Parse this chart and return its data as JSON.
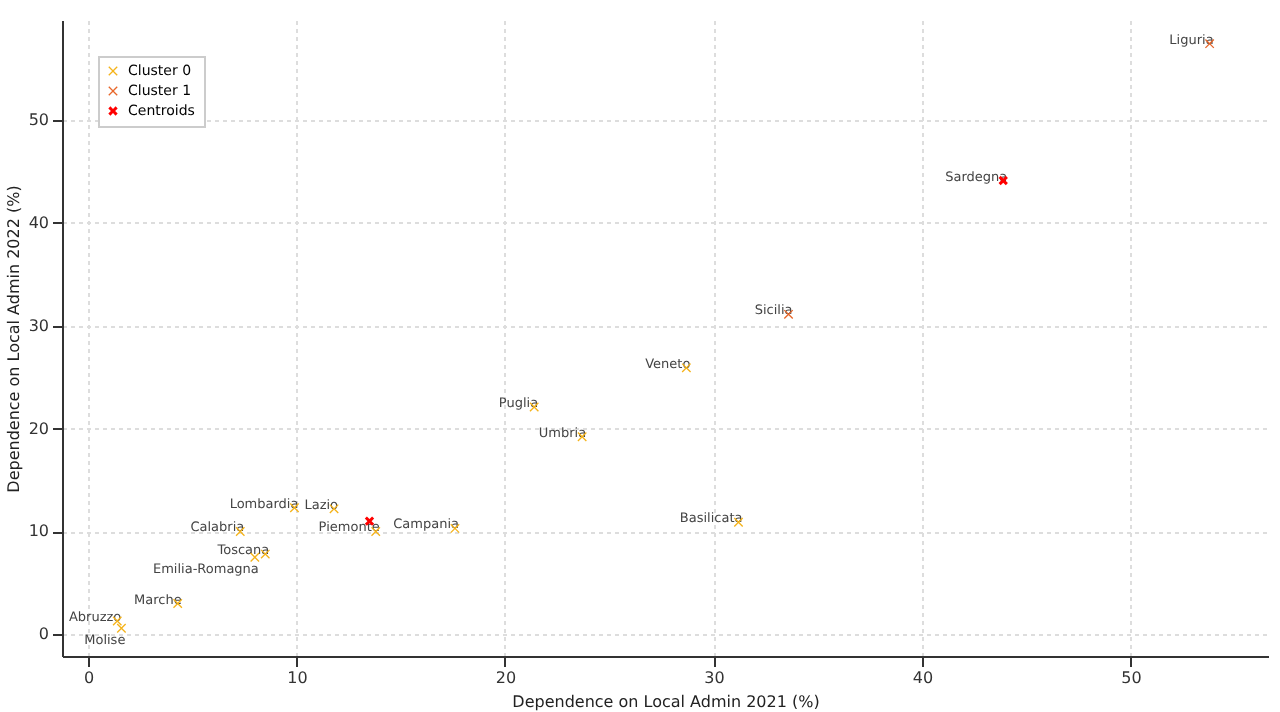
{
  "chart_data": {
    "type": "scatter",
    "xlabel": "Dependence on Local Admin 2021 (%)",
    "ylabel": "Dependence on Local Admin 2022 (%)",
    "xlim": [
      -1.25,
      56.6
    ],
    "ylim": [
      -2.1,
      59.7
    ],
    "xticks": [
      0,
      10,
      20,
      30,
      40,
      50
    ],
    "yticks": [
      0,
      10,
      20,
      30,
      40,
      50
    ],
    "grid": true,
    "legend": "top left",
    "marker": "cross",
    "series": [
      {
        "name": "Cluster 0",
        "color": "#f5b31a",
        "x": [
          21.4,
          23.7,
          9.9,
          11.8,
          13.8,
          17.6,
          7.3,
          8.5,
          8.0,
          4.3,
          1.4,
          1.6,
          28.7,
          31.2
        ],
        "values": [
          22.1,
          19.2,
          12.3,
          12.2,
          10.0,
          10.3,
          10.0,
          7.8,
          7.5,
          3.0,
          1.3,
          0.6,
          25.9,
          10.9
        ]
      },
      {
        "name": "Cluster 1",
        "color": "#e8672a",
        "x": [
          53.8,
          33.6
        ],
        "values": [
          57.4,
          31.1
        ]
      },
      {
        "name": "Centroids",
        "color": "#ff0000",
        "x": [
          13.5,
          43.9
        ],
        "values": [
          11.0,
          44.1
        ]
      }
    ],
    "annotations": [
      {
        "text": "Puglia",
        "x": 21.4,
        "y": 22.1
      },
      {
        "text": "Umbria",
        "x": 23.7,
        "y": 19.2
      },
      {
        "text": "Lombardia",
        "x": 9.9,
        "y": 12.3
      },
      {
        "text": "Lazio",
        "x": 11.8,
        "y": 12.2
      },
      {
        "text": "Piemonte",
        "x": 13.8,
        "y": 10.0
      },
      {
        "text": "Campania",
        "x": 17.6,
        "y": 10.3
      },
      {
        "text": "Calabria",
        "x": 7.3,
        "y": 10.0
      },
      {
        "text": "Toscana",
        "x": 8.5,
        "y": 7.8
      },
      {
        "text": "Emilia-Romagna",
        "x": 8.0,
        "y": 7.5
      },
      {
        "text": "Marche",
        "x": 4.3,
        "y": 3.0
      },
      {
        "text": "Abruzzo",
        "x": 1.4,
        "y": 1.3
      },
      {
        "text": "Molise",
        "x": 1.6,
        "y": 0.6
      },
      {
        "text": "Veneto",
        "x": 28.7,
        "y": 25.9
      },
      {
        "text": "Basilicata",
        "x": 31.2,
        "y": 10.9
      },
      {
        "text": "Liguria",
        "x": 53.8,
        "y": 57.4
      },
      {
        "text": "Sardegna",
        "x": 43.9,
        "y": 44.1
      },
      {
        "text": "Sicilia",
        "x": 33.6,
        "y": 31.1
      }
    ]
  }
}
